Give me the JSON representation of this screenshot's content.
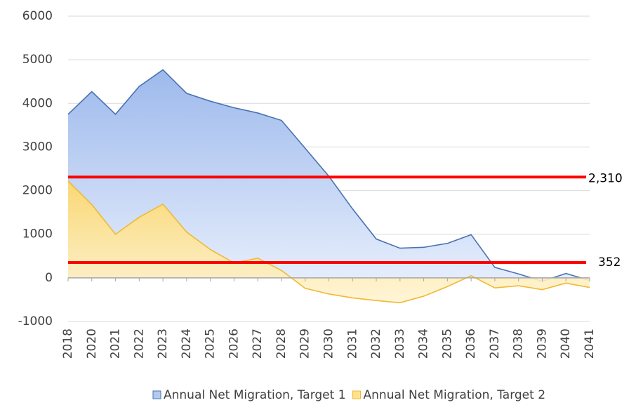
{
  "chart_data": {
    "type": "area",
    "categories": [
      "2018",
      "2020",
      "2021",
      "2022",
      "2023",
      "2024",
      "2025",
      "2026",
      "2027",
      "2028",
      "2029",
      "2030",
      "2031",
      "2032",
      "2033",
      "2034",
      "2035",
      "2036",
      "2037",
      "2038",
      "2039",
      "2040",
      "2041"
    ],
    "series": [
      {
        "name": "Annual Net Migration, Target 1",
        "color": "#4a72b0",
        "fill": "#b3c9ef",
        "values": [
          3750,
          4270,
          3750,
          4390,
          4770,
          4230,
          4050,
          3900,
          3780,
          3610,
          2970,
          2330,
          1580,
          890,
          680,
          700,
          790,
          990,
          240,
          90,
          -80,
          100,
          -60
        ]
      },
      {
        "name": "Annual Net Migration, Target 2",
        "color": "#f2b830",
        "fill": "#ffe28f",
        "values": [
          2220,
          1680,
          1000,
          1390,
          1690,
          1050,
          650,
          340,
          450,
          170,
          -240,
          -370,
          -460,
          -520,
          -570,
          -420,
          -200,
          50,
          -230,
          -180,
          -270,
          -120,
          -220
        ]
      }
    ],
    "reference_lines": [
      {
        "value": 2310,
        "label": "2,310",
        "color": "#ff0000"
      },
      {
        "value": 352,
        "label": "352",
        "color": "#ff0000"
      }
    ],
    "ylim": [
      -1000,
      6000
    ],
    "yticks": [
      -1000,
      0,
      1000,
      2000,
      3000,
      4000,
      5000,
      6000
    ],
    "grid": true,
    "legend": "bottom"
  }
}
